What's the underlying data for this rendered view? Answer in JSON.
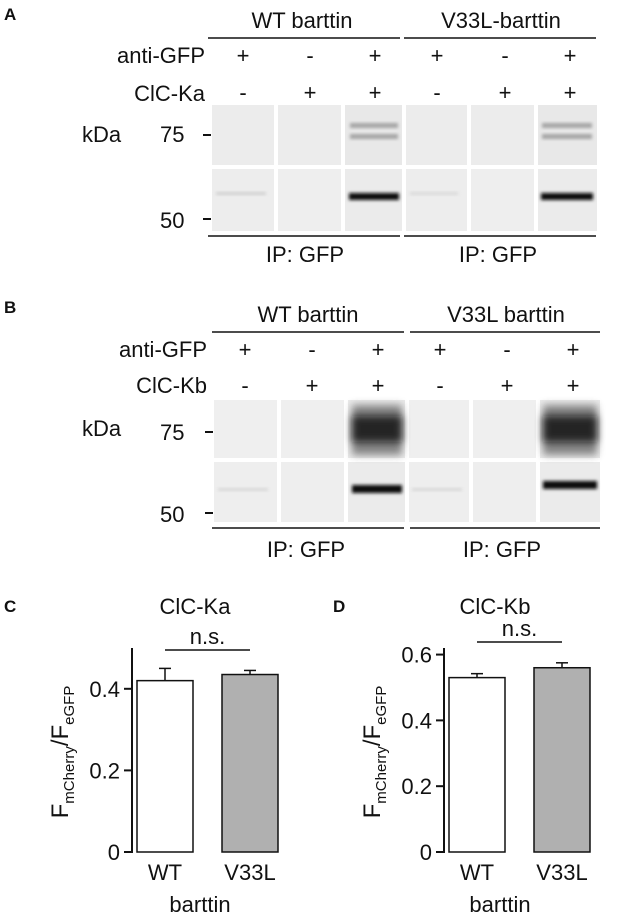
{
  "panels": {
    "A": {
      "letter": "A",
      "group_labels": [
        "WT barttin",
        "V33L-barttin"
      ],
      "row_labels": [
        "anti-GFP",
        "ClC-Ka"
      ],
      "row1_signs": [
        "+",
        "-",
        "+",
        "+",
        "-",
        "+"
      ],
      "row2_signs": [
        "-",
        "+",
        "+",
        "-",
        "+",
        "+"
      ],
      "kda_label": "kDa",
      "markers": [
        "75",
        "50"
      ],
      "ip_labels": [
        "IP: GFP",
        "IP: GFP"
      ]
    },
    "B": {
      "letter": "B",
      "group_labels": [
        "WT barttin",
        "V33L barttin"
      ],
      "row_labels": [
        "anti-GFP",
        "ClC-Kb"
      ],
      "row1_signs": [
        "+",
        "-",
        "+",
        "+",
        "-",
        "+"
      ],
      "row2_signs": [
        "-",
        "+",
        "+",
        "-",
        "+",
        "+"
      ],
      "kda_label": "kDa",
      "markers": [
        "75",
        "50"
      ],
      "ip_labels": [
        "IP: GFP",
        "IP: GFP"
      ]
    }
  },
  "chart_data": [
    {
      "letter": "C",
      "type": "bar",
      "title": "ClC-Ka",
      "categories": [
        "WT",
        "V33L"
      ],
      "values": [
        0.42,
        0.435
      ],
      "errors": [
        0.03,
        0.01
      ],
      "bar_colors": [
        "#ffffff",
        "#b0b0b0"
      ],
      "ylim": [
        0,
        0.5
      ],
      "yticks": [
        "0",
        "0.2",
        "0.4"
      ],
      "ytick_values": [
        0,
        0.2,
        0.4
      ],
      "ylabel_main": "F",
      "ylabel_sub1": "mCherry",
      "ylabel_sep": "/F",
      "ylabel_sub2": "eGFP",
      "xlabel": "barttin",
      "annotation": "n.s."
    },
    {
      "letter": "D",
      "type": "bar",
      "title": "ClC-Kb",
      "categories": [
        "WT",
        "V33L"
      ],
      "values": [
        0.53,
        0.56
      ],
      "errors": [
        0.012,
        0.015
      ],
      "bar_colors": [
        "#ffffff",
        "#b0b0b0"
      ],
      "ylim": [
        0,
        0.62
      ],
      "yticks": [
        "0",
        "0.2",
        "0.4",
        "0.6"
      ],
      "ytick_values": [
        0,
        0.2,
        0.4,
        0.6
      ],
      "ylabel_main": "F",
      "ylabel_sub1": "mCherry",
      "ylabel_sep": "/F",
      "ylabel_sub2": "eGFP",
      "xlabel": "barttin",
      "annotation": "n.s."
    }
  ]
}
